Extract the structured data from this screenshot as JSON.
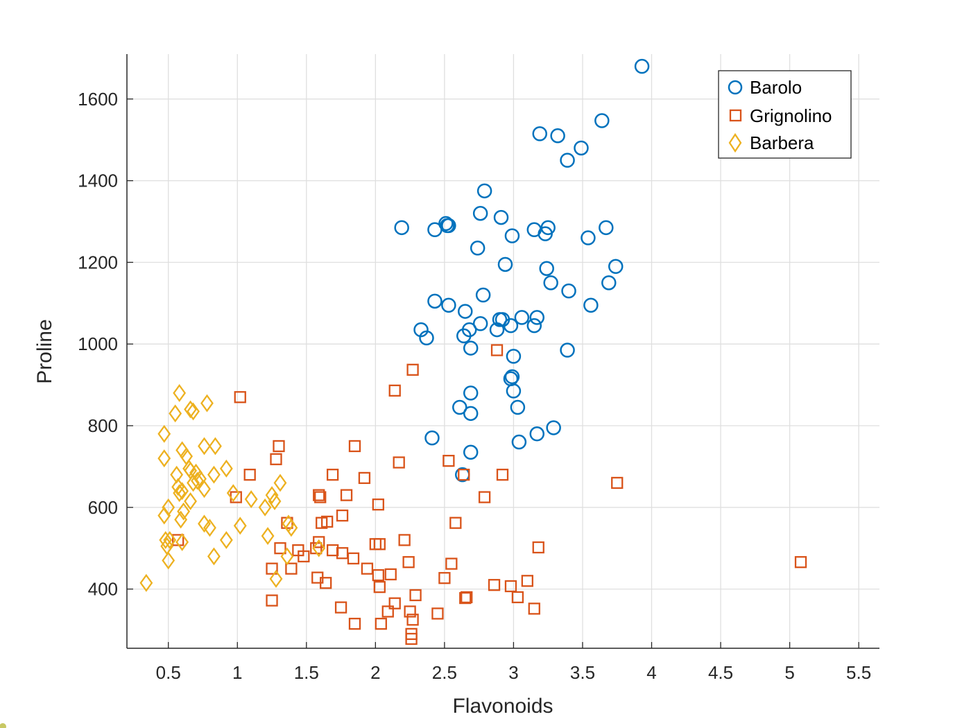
{
  "chart_data": {
    "type": "scatter",
    "title": "",
    "xlabel": "Flavonoids",
    "ylabel": "Proline",
    "xlim": [
      0.2,
      5.65
    ],
    "ylim": [
      255,
      1710
    ],
    "xticks": [
      0.5,
      1,
      1.5,
      2,
      2.5,
      3,
      3.5,
      4,
      4.5,
      5,
      5.5
    ],
    "xtick_labels": [
      "0.5",
      "1",
      "1.5",
      "2",
      "2.5",
      "3",
      "3.5",
      "4",
      "4.5",
      "5",
      "5.5"
    ],
    "yticks": [
      400,
      600,
      800,
      1000,
      1200,
      1400,
      1600
    ],
    "ytick_labels": [
      "400",
      "600",
      "800",
      "1000",
      "1200",
      "1400",
      "1600"
    ],
    "grid": true,
    "legend_position": "top-right",
    "series": [
      {
        "name": "Barolo",
        "marker": "circle",
        "color": "#0072BD",
        "points": [
          [
            3.93,
            1680
          ],
          [
            3.64,
            1547
          ],
          [
            3.19,
            1515
          ],
          [
            3.32,
            1510
          ],
          [
            3.49,
            1480
          ],
          [
            3.39,
            1450
          ],
          [
            2.79,
            1375
          ],
          [
            2.76,
            1320
          ],
          [
            2.91,
            1310
          ],
          [
            2.51,
            1295
          ],
          [
            2.52,
            1290
          ],
          [
            2.53,
            1290
          ],
          [
            2.19,
            1285
          ],
          [
            2.43,
            1280
          ],
          [
            3.15,
            1280
          ],
          [
            3.25,
            1285
          ],
          [
            3.67,
            1285
          ],
          [
            3.23,
            1270
          ],
          [
            2.99,
            1265
          ],
          [
            3.54,
            1260
          ],
          [
            2.74,
            1235
          ],
          [
            2.94,
            1195
          ],
          [
            3.74,
            1190
          ],
          [
            3.24,
            1185
          ],
          [
            3.27,
            1150
          ],
          [
            3.69,
            1150
          ],
          [
            3.4,
            1130
          ],
          [
            2.78,
            1120
          ],
          [
            2.43,
            1105
          ],
          [
            2.53,
            1095
          ],
          [
            3.56,
            1095
          ],
          [
            2.65,
            1080
          ],
          [
            2.9,
            1060
          ],
          [
            2.92,
            1060
          ],
          [
            3.06,
            1065
          ],
          [
            3.17,
            1065
          ],
          [
            2.76,
            1050
          ],
          [
            2.98,
            1045
          ],
          [
            3.15,
            1045
          ],
          [
            2.33,
            1035
          ],
          [
            2.68,
            1035
          ],
          [
            2.88,
            1035
          ],
          [
            2.64,
            1020
          ],
          [
            2.37,
            1015
          ],
          [
            2.69,
            990
          ],
          [
            3.39,
            985
          ],
          [
            3.0,
            970
          ],
          [
            2.98,
            915
          ],
          [
            2.99,
            920
          ],
          [
            3.0,
            885
          ],
          [
            2.69,
            880
          ],
          [
            2.61,
            845
          ],
          [
            3.03,
            845
          ],
          [
            2.69,
            830
          ],
          [
            3.29,
            795
          ],
          [
            3.17,
            780
          ],
          [
            2.41,
            770
          ],
          [
            3.04,
            760
          ],
          [
            2.69,
            735
          ],
          [
            2.63,
            680
          ]
        ]
      },
      {
        "name": "Grignolino",
        "marker": "square",
        "color": "#D95319",
        "points": [
          [
            2.27,
            937
          ],
          [
            2.88,
            985
          ],
          [
            2.14,
            886
          ],
          [
            1.02,
            870
          ],
          [
            1.3,
            750
          ],
          [
            1.85,
            750
          ],
          [
            1.28,
            718
          ],
          [
            2.17,
            710
          ],
          [
            2.53,
            714
          ],
          [
            1.09,
            680
          ],
          [
            1.69,
            680
          ],
          [
            2.64,
            680
          ],
          [
            2.92,
            680
          ],
          [
            3.75,
            660
          ],
          [
            1.92,
            672
          ],
          [
            0.99,
            625
          ],
          [
            1.59,
            630
          ],
          [
            1.6,
            625
          ],
          [
            1.79,
            630
          ],
          [
            2.79,
            625
          ],
          [
            2.02,
            607
          ],
          [
            1.36,
            562
          ],
          [
            1.61,
            562
          ],
          [
            1.65,
            565
          ],
          [
            2.58,
            562
          ],
          [
            1.76,
            580
          ],
          [
            2.21,
            520
          ],
          [
            0.57,
            520
          ],
          [
            1.59,
            515
          ],
          [
            2.0,
            510
          ],
          [
            2.03,
            510
          ],
          [
            1.31,
            500
          ],
          [
            1.44,
            495
          ],
          [
            1.57,
            500
          ],
          [
            1.69,
            495
          ],
          [
            1.76,
            488
          ],
          [
            3.18,
            502
          ],
          [
            5.08,
            466
          ],
          [
            1.48,
            480
          ],
          [
            1.84,
            475
          ],
          [
            2.24,
            466
          ],
          [
            1.94,
            450
          ],
          [
            1.25,
            450
          ],
          [
            1.39,
            450
          ],
          [
            2.55,
            462
          ],
          [
            2.11,
            436
          ],
          [
            2.02,
            434
          ],
          [
            1.58,
            428
          ],
          [
            2.5,
            427
          ],
          [
            1.64,
            415
          ],
          [
            2.03,
            405
          ],
          [
            2.86,
            410
          ],
          [
            2.98,
            407
          ],
          [
            3.1,
            420
          ],
          [
            2.29,
            385
          ],
          [
            2.66,
            380
          ],
          [
            2.65,
            378
          ],
          [
            3.03,
            380
          ],
          [
            1.25,
            372
          ],
          [
            2.14,
            365
          ],
          [
            1.75,
            355
          ],
          [
            2.09,
            345
          ],
          [
            2.25,
            345
          ],
          [
            2.45,
            340
          ],
          [
            3.15,
            352
          ],
          [
            2.27,
            325
          ],
          [
            1.85,
            315
          ],
          [
            2.04,
            315
          ],
          [
            2.26,
            290
          ],
          [
            2.26,
            278
          ]
        ]
      },
      {
        "name": "Barbera",
        "marker": "diamond",
        "color": "#EDB120",
        "points": [
          [
            0.58,
            880
          ],
          [
            0.78,
            855
          ],
          [
            0.66,
            840
          ],
          [
            0.68,
            835
          ],
          [
            0.55,
            830
          ],
          [
            0.47,
            780
          ],
          [
            0.6,
            740
          ],
          [
            0.76,
            750
          ],
          [
            0.84,
            750
          ],
          [
            0.47,
            720
          ],
          [
            0.63,
            725
          ],
          [
            0.92,
            695
          ],
          [
            0.65,
            695
          ],
          [
            0.66,
            690
          ],
          [
            0.7,
            685
          ],
          [
            0.56,
            680
          ],
          [
            0.83,
            680
          ],
          [
            0.73,
            670
          ],
          [
            0.68,
            660
          ],
          [
            0.71,
            665
          ],
          [
            1.31,
            660
          ],
          [
            0.57,
            650
          ],
          [
            0.6,
            640
          ],
          [
            0.76,
            645
          ],
          [
            0.58,
            635
          ],
          [
            0.97,
            635
          ],
          [
            1.25,
            630
          ],
          [
            1.1,
            620
          ],
          [
            0.66,
            615
          ],
          [
            1.27,
            615
          ],
          [
            0.5,
            600
          ],
          [
            1.2,
            600
          ],
          [
            0.61,
            590
          ],
          [
            0.47,
            580
          ],
          [
            1.37,
            560
          ],
          [
            0.59,
            570
          ],
          [
            0.76,
            560
          ],
          [
            1.02,
            555
          ],
          [
            0.8,
            550
          ],
          [
            1.39,
            550
          ],
          [
            1.22,
            530
          ],
          [
            0.48,
            520
          ],
          [
            0.51,
            520
          ],
          [
            0.6,
            515
          ],
          [
            0.92,
            520
          ],
          [
            0.49,
            505
          ],
          [
            1.59,
            500
          ],
          [
            0.83,
            480
          ],
          [
            1.36,
            480
          ],
          [
            0.5,
            470
          ],
          [
            1.28,
            425
          ],
          [
            0.34,
            415
          ]
        ]
      }
    ]
  }
}
